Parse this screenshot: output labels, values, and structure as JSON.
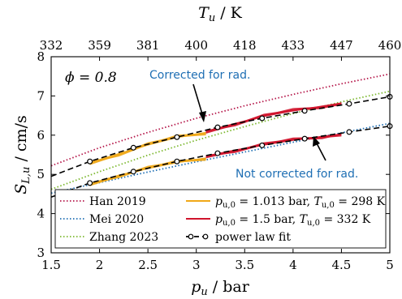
{
  "chart_data": {
    "type": "line",
    "xlabel_main": "p",
    "xlabel_sub": "u",
    "xlabel_unit": " / bar",
    "ylabel_main": "S",
    "ylabel_sub": "L,u",
    "ylabel_unit": " / cm/s",
    "toplabel_main": "T",
    "toplabel_sub": "u",
    "toplabel_unit": " / K",
    "xlim": [
      1.5,
      5
    ],
    "ylim": [
      3,
      8
    ],
    "xticks": [
      1.5,
      2,
      2.5,
      3,
      3.5,
      4,
      4.5,
      5
    ],
    "xtick_labels": [
      "1.5",
      "2",
      "2.5",
      "3",
      "3.5",
      "4",
      "4.5",
      "5"
    ],
    "yticks": [
      3,
      4,
      5,
      6,
      7,
      8
    ],
    "ytick_labels": [
      "3",
      "4",
      "5",
      "6",
      "7",
      "8"
    ],
    "top_ticks": [
      {
        "p": 1.5,
        "label": "332"
      },
      {
        "p": 2.0,
        "label": "359"
      },
      {
        "p": 2.5,
        "label": "381"
      },
      {
        "p": 3.0,
        "label": "400"
      },
      {
        "p": 3.5,
        "label": "418"
      },
      {
        "p": 4.0,
        "label": "433"
      },
      {
        "p": 4.5,
        "label": "447"
      },
      {
        "p": 5.0,
        "label": "460"
      }
    ],
    "grid": false,
    "annotation_phi": "ϕ = 0.8",
    "annotation_corrected": "Corrected for rad.",
    "annotation_not_corrected": "Not corrected for rad.",
    "series": [
      {
        "name": "Han 2019",
        "style": "dotted",
        "color": "#b5174a",
        "x": [
          1.5,
          2.0,
          2.5,
          3.0,
          3.5,
          4.0,
          4.5,
          5.0
        ],
        "y": [
          5.22,
          5.68,
          6.07,
          6.43,
          6.75,
          7.04,
          7.31,
          7.56
        ]
      },
      {
        "name": "Mei 2020",
        "style": "dotted",
        "color": "#1f6fb4",
        "x": [
          1.5,
          2.0,
          2.5,
          3.0,
          3.5,
          4.0,
          4.5,
          5.0
        ],
        "y": [
          4.52,
          4.79,
          5.06,
          5.32,
          5.57,
          5.82,
          6.06,
          6.3
        ]
      },
      {
        "name": "Zhang 2023",
        "style": "dotted",
        "color": "#7cb82f",
        "x": [
          1.5,
          2.0,
          2.5,
          3.0,
          3.5,
          4.0,
          4.5,
          5.0
        ],
        "y": [
          4.62,
          5.07,
          5.49,
          5.87,
          6.22,
          6.55,
          6.85,
          7.12
        ]
      },
      {
        "name_p": "p",
        "name_p_sub": "u,0",
        "name_p_val": " = 1.013 bar, ",
        "name_t": "T",
        "name_t_sub": "u,0",
        "name_t_val": " = 298 K",
        "style": "solid",
        "color": "#f0a818",
        "x": [
          1.9,
          2.2,
          2.5,
          2.8,
          3.1
        ],
        "y_upper": [
          5.3,
          5.53,
          5.75,
          5.94,
          6.07
        ],
        "y_lower": [
          4.76,
          4.98,
          5.15,
          5.3,
          5.42
        ]
      },
      {
        "name_p": "p",
        "name_p_sub": "u,0",
        "name_p_val": " = 1.5 bar, ",
        "name_t": "T",
        "name_t_sub": "u,0",
        "name_t_val": " = 332 K",
        "style": "solid",
        "color": "#d0142c",
        "x": [
          3.1,
          3.4,
          3.7,
          4.0,
          4.3,
          4.5
        ],
        "y_upper": [
          6.1,
          6.3,
          6.48,
          6.62,
          6.74,
          6.82
        ],
        "y_lower": [
          5.47,
          5.62,
          5.75,
          5.87,
          5.97,
          6.03
        ]
      },
      {
        "name": "power law fit",
        "style": "dashed-markers",
        "color": "#000000",
        "x": [
          1.5,
          1.9,
          2.35,
          2.8,
          3.22,
          3.68,
          4.12,
          4.58,
          5.0
        ],
        "y_upper": [
          4.95,
          5.33,
          5.68,
          5.95,
          6.2,
          6.43,
          6.62,
          6.8,
          6.98
        ],
        "y_lower": [
          4.42,
          4.78,
          5.07,
          5.33,
          5.54,
          5.74,
          5.91,
          6.08,
          6.23
        ],
        "marker_x": [
          1.9,
          2.35,
          2.8,
          3.22,
          3.68,
          4.12,
          4.58,
          5.0
        ]
      }
    ]
  }
}
